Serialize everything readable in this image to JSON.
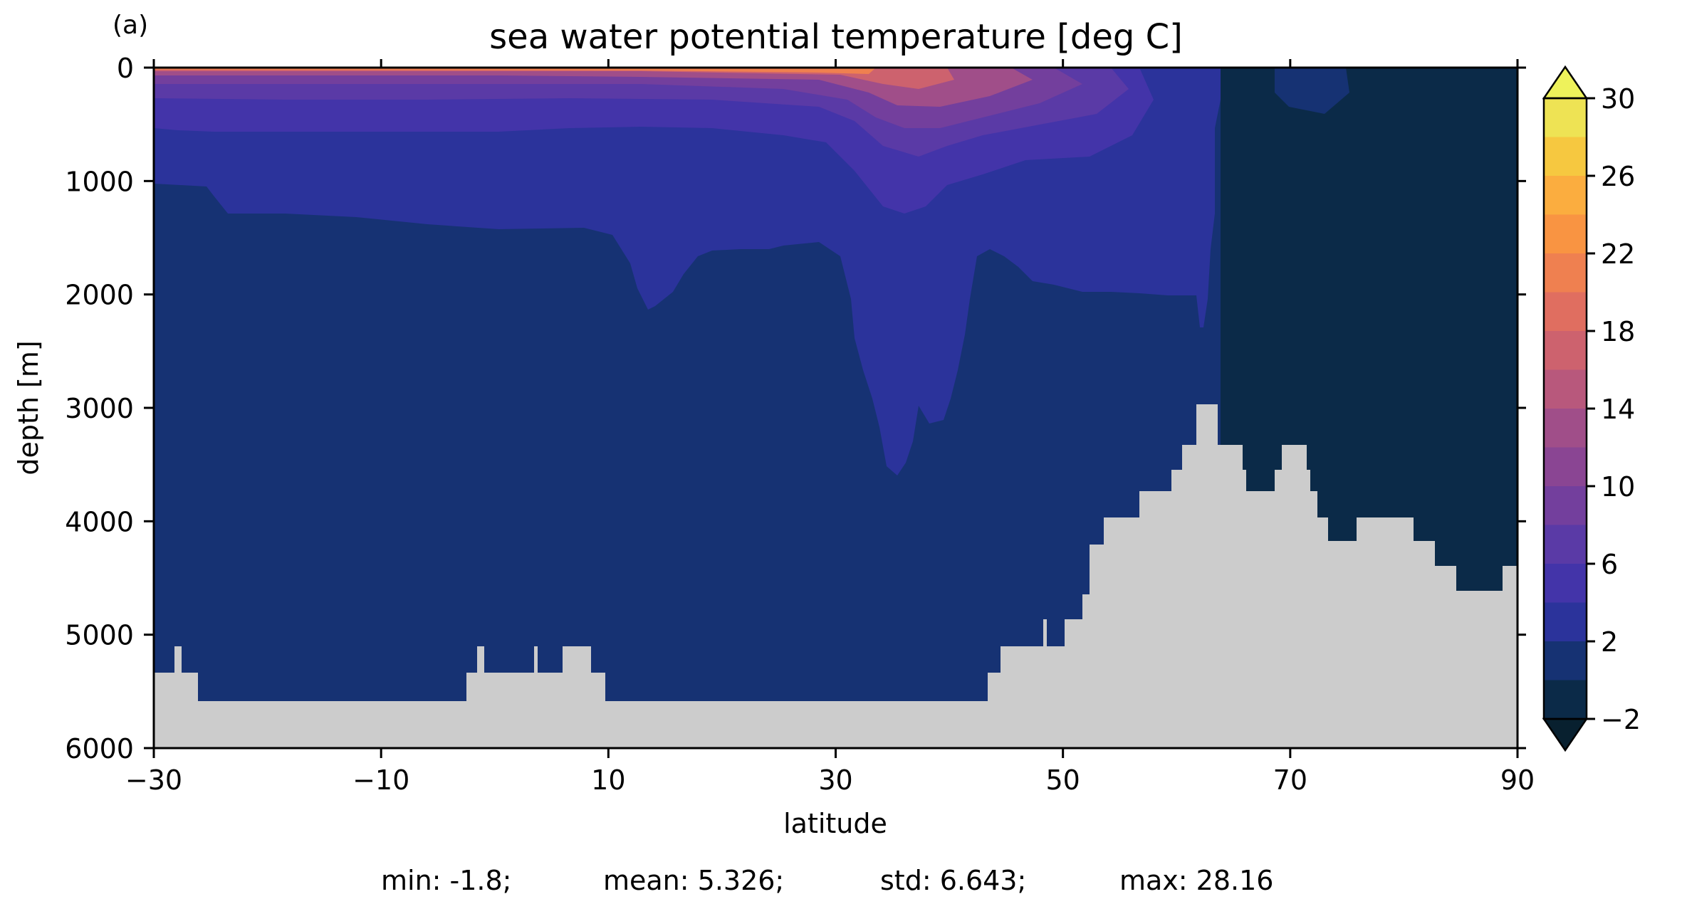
{
  "chart_data": {
    "type": "heatmap",
    "panel_label": "(a)",
    "title": "sea water potential temperature [deg C]",
    "xlabel": "latitude",
    "ylabel": "depth [m]",
    "xlim": [
      -30,
      90
    ],
    "ylim": [
      6000,
      0
    ],
    "x_ticks": [
      "−30",
      "−10",
      "10",
      "30",
      "50",
      "70",
      "90"
    ],
    "y_ticks": [
      "0",
      "1000",
      "2000",
      "3000",
      "4000",
      "5000",
      "6000"
    ],
    "colorbar": {
      "extend": "both",
      "levels": [
        -2,
        0,
        2,
        4,
        6,
        8,
        10,
        12,
        14,
        16,
        18,
        20,
        22,
        24,
        26,
        28,
        30
      ],
      "tick_labels": [
        "−2",
        "2",
        "6",
        "10",
        "14",
        "18",
        "22",
        "26",
        "30"
      ],
      "colors": [
        "#0b2a48",
        "#163273",
        "#2b339b",
        "#4334a9",
        "#5a3aa6",
        "#733f9d",
        "#8a4593",
        "#a04e89",
        "#b8587c",
        "#cd626e",
        "#e06e60",
        "#ef8050",
        "#f99442",
        "#fbad3f",
        "#f6c840",
        "#eee354"
      ],
      "under_color": "#08202f",
      "over_color": "#eef25b",
      "land_color": "#cccccc"
    },
    "stats": {
      "min": "min: -1.8;",
      "mean": "mean: 5.326;",
      "std": "std: 6.643;",
      "max": "max: 28.16"
    }
  }
}
